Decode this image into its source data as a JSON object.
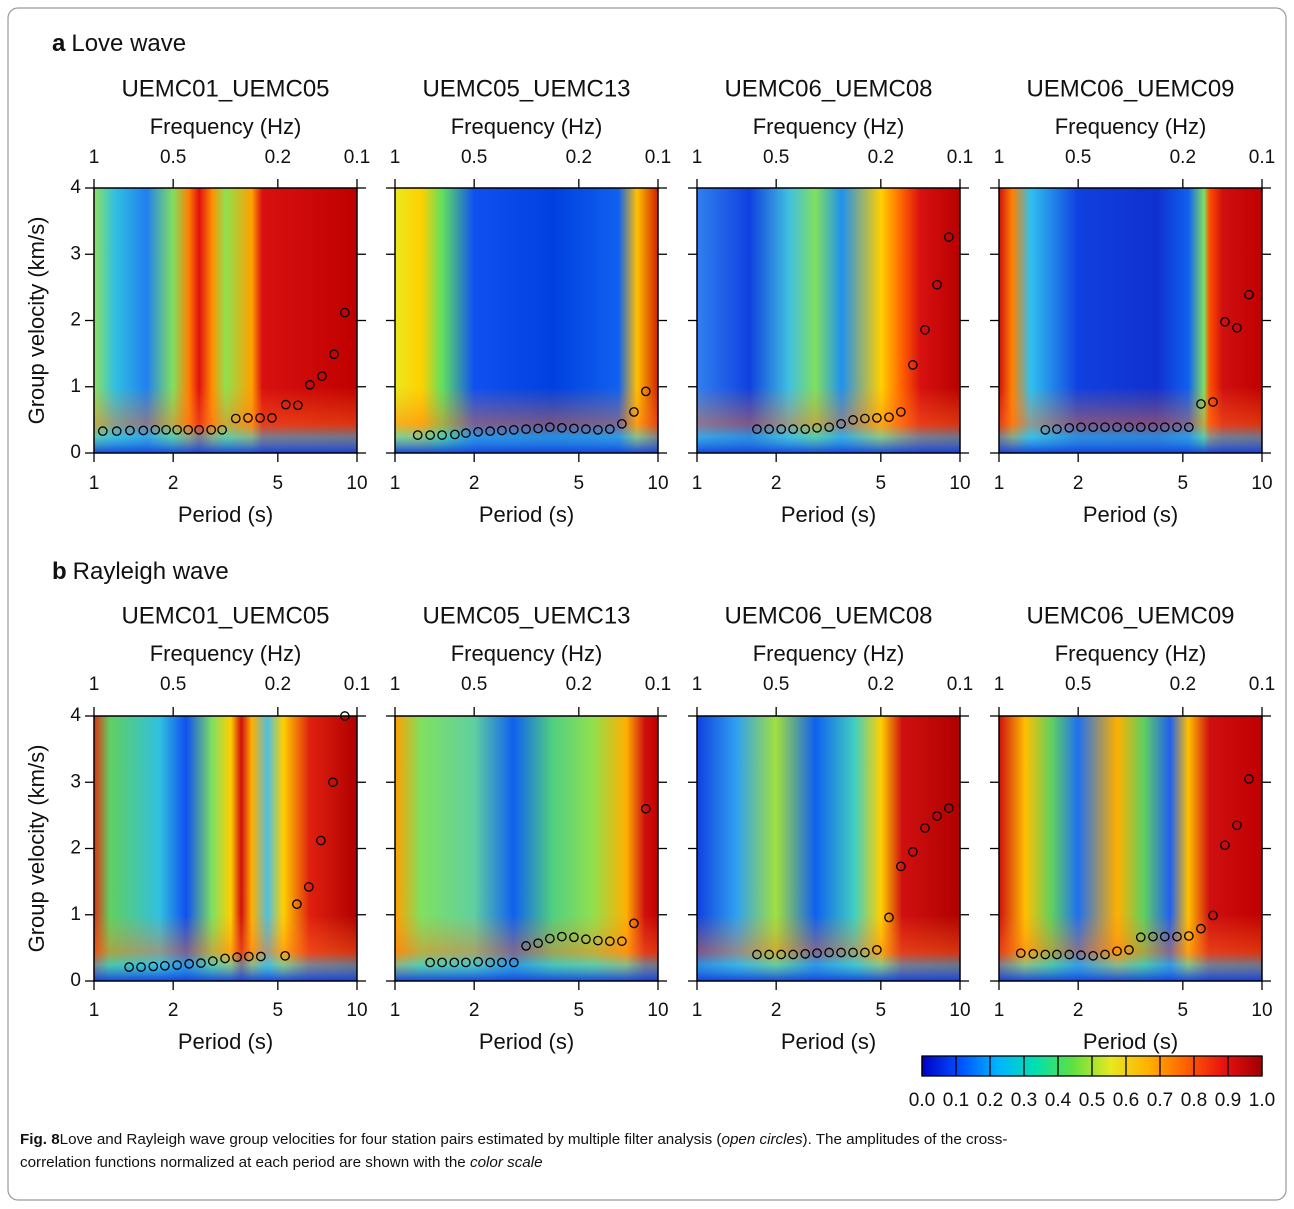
{
  "figure": {
    "sections": [
      {
        "letter": "a",
        "name": "Love wave"
      },
      {
        "letter": "b",
        "name": "Rayleigh wave"
      }
    ],
    "colorbar": {
      "xlim": [
        0,
        1
      ],
      "ticks": [
        {
          "value": 0,
          "label": "0.0"
        },
        0.1,
        0.2,
        0.3,
        0.4,
        0.5,
        0.6,
        0.7,
        0.8,
        0.9,
        {
          "value": 1,
          "label": "1.0"
        }
      ],
      "colormap": [
        "#0000c8",
        "#0050ff",
        "#00b4ff",
        "#00e0b0",
        "#60e040",
        "#e8e820",
        "#ffb000",
        "#ff6000",
        "#e81010",
        "#a00000"
      ]
    },
    "caption": {
      "label": "Fig. 8",
      "lines": [
        [
          "Love and Rayleigh wave group velocities for four station pairs estimated by multiple filter analysis (",
          "open circles",
          "). The amplitudes of the cross-"
        ],
        [
          "correlation functions normalized at each period are shown with the ",
          "color scale"
        ]
      ]
    }
  },
  "chart_data": [
    {
      "type": "scatter",
      "title": "UEMC01_UEMC05",
      "xlabel": "Period (s)",
      "x2label": "Frequency (Hz)",
      "ylabel": "Group velocity (km/s)",
      "xscale": "log",
      "xlim": [
        1,
        10
      ],
      "xticks": [
        1,
        2,
        5,
        10
      ],
      "x2ticks": [
        1,
        0.5,
        0.2,
        0.1
      ],
      "ylim": [
        0,
        4
      ],
      "yticks": [
        0,
        1,
        2,
        3,
        4
      ],
      "marker": "open-circle",
      "x": [
        1.08,
        1.22,
        1.37,
        1.54,
        1.71,
        1.88,
        2.07,
        2.28,
        2.51,
        2.79,
        3.07,
        3.46,
        3.85,
        4.28,
        4.75,
        5.36,
        5.96,
        6.62,
        7.36,
        8.18,
        8.99
      ],
      "y": [
        0.33,
        0.33,
        0.34,
        0.34,
        0.35,
        0.35,
        0.35,
        0.35,
        0.35,
        0.35,
        0.35,
        0.52,
        0.53,
        0.53,
        0.53,
        0.73,
        0.72,
        1.03,
        1.16,
        1.49,
        2.12
      ]
    },
    {
      "type": "scatter",
      "title": "UEMC05_UEMC13",
      "xlabel": "Period (s)",
      "x2label": "Frequency (Hz)",
      "xscale": "log",
      "xlim": [
        1,
        10
      ],
      "xticks": [
        1,
        2,
        5,
        10
      ],
      "x2ticks": [
        1,
        0.5,
        0.2,
        0.1
      ],
      "ylim": [
        0,
        4
      ],
      "yticks": [
        0,
        1,
        2,
        3,
        4
      ],
      "marker": "open-circle",
      "x": [
        1.22,
        1.36,
        1.51,
        1.69,
        1.86,
        2.07,
        2.3,
        2.55,
        2.83,
        3.15,
        3.5,
        3.88,
        4.31,
        4.79,
        5.32,
        5.91,
        6.56,
        7.29,
        8.1,
        8.99
      ],
      "y": [
        0.27,
        0.27,
        0.27,
        0.28,
        0.3,
        0.32,
        0.33,
        0.34,
        0.35,
        0.36,
        0.37,
        0.39,
        0.38,
        0.37,
        0.36,
        0.35,
        0.36,
        0.44,
        0.62,
        0.93
      ]
    },
    {
      "type": "scatter",
      "title": "UEMC06_UEMC08",
      "xlabel": "Period (s)",
      "x2label": "Frequency (Hz)",
      "xscale": "log",
      "xlim": [
        1,
        10
      ],
      "xticks": [
        1,
        2,
        5,
        10
      ],
      "x2ticks": [
        1,
        0.5,
        0.2,
        0.1
      ],
      "ylim": [
        0,
        4
      ],
      "yticks": [
        0,
        1,
        2,
        3,
        4
      ],
      "marker": "open-circle",
      "x": [
        1.69,
        1.88,
        2.09,
        2.32,
        2.58,
        2.86,
        3.18,
        3.53,
        3.92,
        4.35,
        4.83,
        5.37,
        5.96,
        6.62,
        7.36,
        8.18,
        9.07
      ],
      "y": [
        0.36,
        0.36,
        0.36,
        0.36,
        0.36,
        0.38,
        0.39,
        0.44,
        0.5,
        0.52,
        0.53,
        0.54,
        0.62,
        1.33,
        1.86,
        2.54,
        3.26
      ]
    },
    {
      "type": "scatter",
      "title": "UEMC06_UEMC09",
      "xlabel": "Period (s)",
      "x2label": "Frequency (Hz)",
      "xscale": "log",
      "xlim": [
        1,
        10
      ],
      "xticks": [
        1,
        2,
        5,
        10
      ],
      "x2ticks": [
        1,
        0.5,
        0.2,
        0.1
      ],
      "ylim": [
        0,
        4
      ],
      "yticks": [
        0,
        1,
        2,
        3,
        4
      ],
      "marker": "open-circle",
      "x": [
        1.5,
        1.66,
        1.85,
        2.05,
        2.28,
        2.53,
        2.81,
        3.12,
        3.46,
        3.85,
        4.27,
        4.75,
        5.27,
        5.86,
        6.51,
        7.23,
        8.03,
        8.92
      ],
      "y": [
        0.35,
        0.36,
        0.38,
        0.39,
        0.39,
        0.39,
        0.39,
        0.39,
        0.39,
        0.39,
        0.39,
        0.39,
        0.39,
        0.74,
        0.77,
        1.98,
        1.89,
        2.39
      ]
    },
    {
      "type": "scatter",
      "title": "UEMC01_UEMC05",
      "xlabel": "Period (s)",
      "x2label": "Frequency (Hz)",
      "ylabel": "Group velocity (km/s)",
      "xscale": "log",
      "xlim": [
        1,
        10
      ],
      "xticks": [
        1,
        2,
        5,
        10
      ],
      "x2ticks": [
        1,
        0.5,
        0.2,
        0.1
      ],
      "ylim": [
        0,
        4
      ],
      "yticks": [
        0,
        1,
        2,
        3,
        4
      ],
      "marker": "open-circle",
      "x": [
        1.36,
        1.51,
        1.68,
        1.86,
        2.07,
        2.3,
        2.55,
        2.83,
        3.15,
        3.5,
        3.88,
        4.31,
        5.33,
        5.91,
        6.56,
        7.29,
        8.1,
        8.99
      ],
      "y": [
        0.21,
        0.21,
        0.22,
        0.23,
        0.24,
        0.26,
        0.27,
        0.3,
        0.34,
        0.36,
        0.37,
        0.37,
        0.38,
        1.16,
        1.42,
        2.12,
        3.0,
        4.0
      ]
    },
    {
      "type": "scatter",
      "title": "UEMC05_UEMC13",
      "xlabel": "Period (s)",
      "x2label": "Frequency (Hz)",
      "xscale": "log",
      "xlim": [
        1,
        10
      ],
      "xticks": [
        1,
        2,
        5,
        10
      ],
      "x2ticks": [
        1,
        0.5,
        0.2,
        0.1
      ],
      "ylim": [
        0,
        4
      ],
      "yticks": [
        0,
        1,
        2,
        3,
        4
      ],
      "marker": "open-circle",
      "x": [
        1.36,
        1.51,
        1.68,
        1.86,
        2.07,
        2.3,
        2.55,
        2.83,
        3.15,
        3.5,
        3.88,
        4.31,
        4.79,
        5.32,
        5.91,
        6.56,
        7.29,
        8.1,
        8.99
      ],
      "y": [
        0.28,
        0.28,
        0.28,
        0.28,
        0.29,
        0.28,
        0.28,
        0.28,
        0.53,
        0.57,
        0.64,
        0.67,
        0.66,
        0.63,
        0.61,
        0.6,
        0.6,
        0.87,
        2.6
      ]
    },
    {
      "type": "scatter",
      "title": "UEMC06_UEMC08",
      "xlabel": "Period (s)",
      "x2label": "Frequency (Hz)",
      "xscale": "log",
      "xlim": [
        1,
        10
      ],
      "xticks": [
        1,
        2,
        5,
        10
      ],
      "x2ticks": [
        1,
        0.5,
        0.2,
        0.1
      ],
      "ylim": [
        0,
        4
      ],
      "yticks": [
        0,
        1,
        2,
        3,
        4
      ],
      "marker": "open-circle",
      "x": [
        1.69,
        1.88,
        2.09,
        2.32,
        2.58,
        2.86,
        3.18,
        3.53,
        3.92,
        4.35,
        4.83,
        5.37,
        5.96,
        6.62,
        7.36,
        8.18,
        9.07
      ],
      "y": [
        0.4,
        0.4,
        0.4,
        0.4,
        0.41,
        0.42,
        0.43,
        0.43,
        0.43,
        0.43,
        0.47,
        0.96,
        1.73,
        1.95,
        2.31,
        2.49,
        2.61
      ]
    },
    {
      "type": "scatter",
      "title": "UEMC06_UEMC09",
      "xlabel": "Period (s)",
      "x2label": "Frequency (Hz)",
      "xscale": "log",
      "xlim": [
        1,
        10
      ],
      "xticks": [
        1,
        2,
        5,
        10
      ],
      "x2ticks": [
        1,
        0.5,
        0.2,
        0.1
      ],
      "ylim": [
        0,
        4
      ],
      "yticks": [
        0,
        1,
        2,
        3,
        4
      ],
      "marker": "open-circle",
      "x": [
        1.21,
        1.35,
        1.5,
        1.66,
        1.85,
        2.05,
        2.28,
        2.53,
        2.81,
        3.12,
        3.46,
        3.85,
        4.27,
        4.75,
        5.27,
        5.86,
        6.51,
        7.23,
        8.03,
        8.92
      ],
      "y": [
        0.42,
        0.41,
        0.4,
        0.4,
        0.4,
        0.39,
        0.38,
        0.4,
        0.45,
        0.47,
        0.66,
        0.67,
        0.67,
        0.67,
        0.68,
        0.79,
        0.99,
        2.05,
        2.35,
        3.05
      ]
    }
  ]
}
